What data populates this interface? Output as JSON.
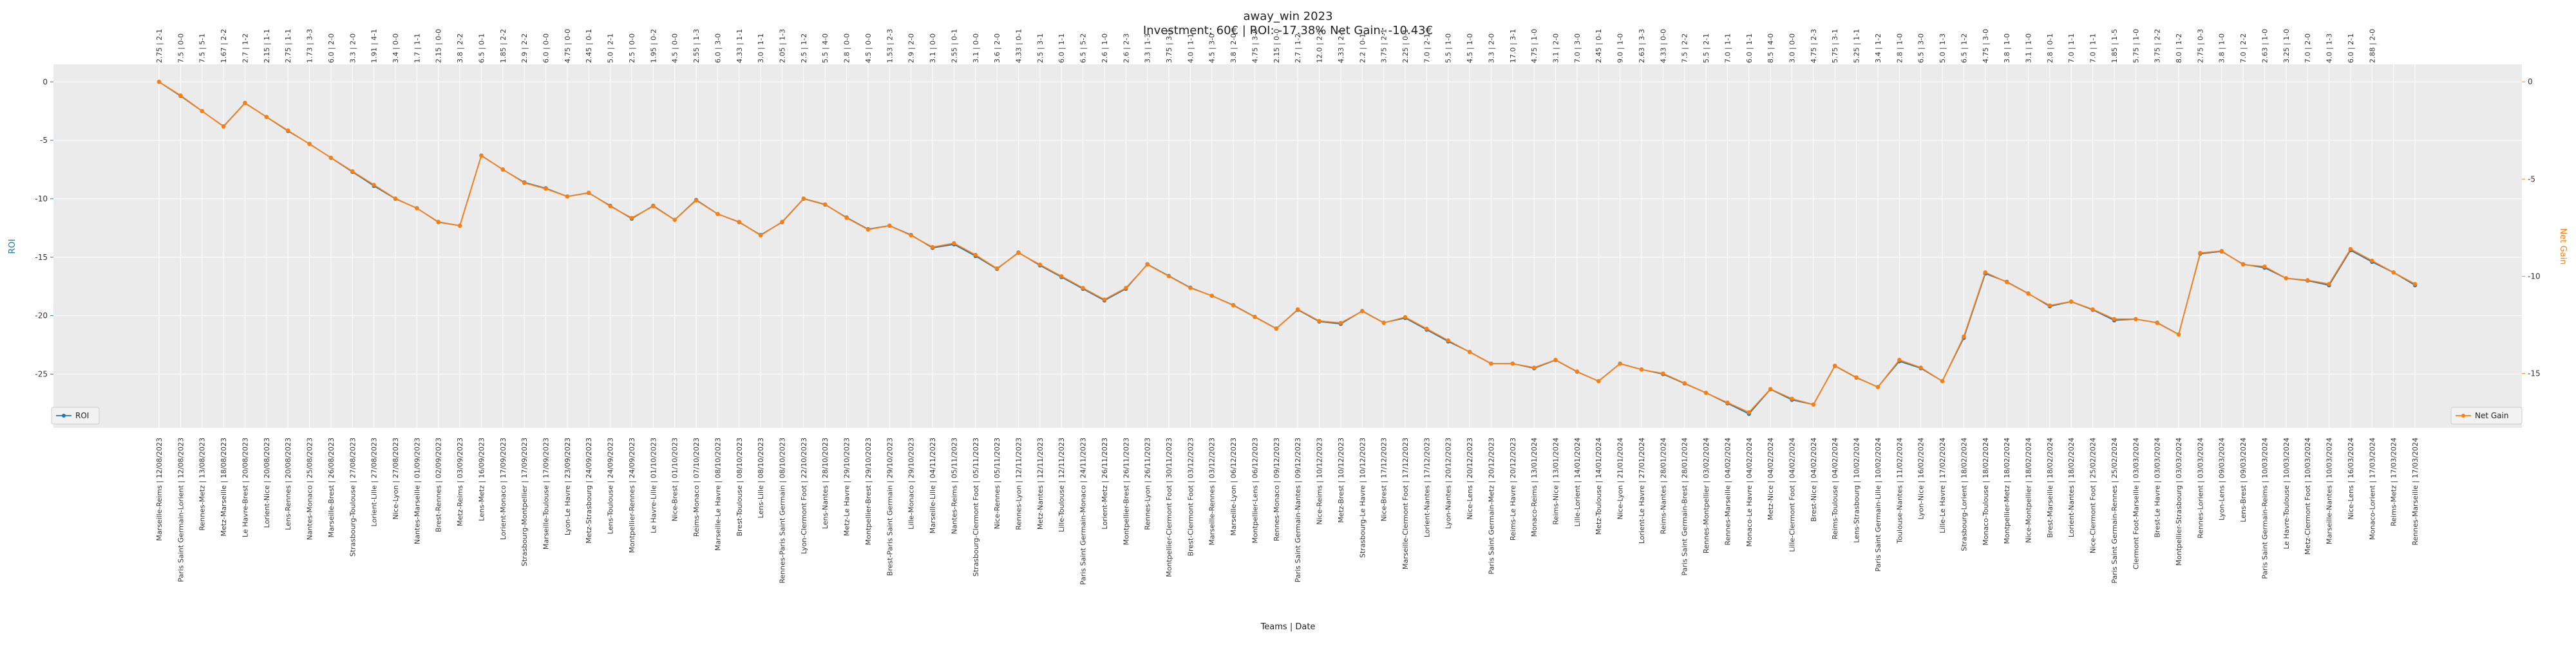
{
  "chart_data": {
    "type": "line",
    "title": "away_win 2023",
    "subtitle": "Investment: 60€ | ROI: -17.38% Net Gain: -10.43€",
    "xlabel": "Teams | Date",
    "ylabel_left": "ROI",
    "ylabel_right": "Net Gain",
    "ylim_left": [
      -29.6,
      1.5
    ],
    "ylim_right": [
      -17.8,
      0.9
    ],
    "yticks_left": [
      0,
      -5,
      -10,
      -15,
      -20,
      -25
    ],
    "yticks_right": [
      0,
      -5,
      -10,
      -15
    ],
    "grid": true,
    "legend_left": {
      "label": "ROI",
      "placement": "bottom-left"
    },
    "legend_right": {
      "label": "Net Gain",
      "placement": "bottom-right"
    },
    "categories": [
      "Marseille-Reims | 12/08/2023",
      "Paris Saint Germain-Lorient | 12/08/2023",
      "Rennes-Metz | 13/08/2023",
      "Metz-Marseille | 18/08/2023",
      "Le Havre-Brest | 20/08/2023",
      "Lorient-Nice | 20/08/2023",
      "Lens-Rennes | 20/08/2023",
      "Nantes-Monaco | 25/08/2023",
      "Marseille-Brest | 26/08/2023",
      "Strasbourg-Toulouse | 27/08/2023",
      "Lorient-Lille | 27/08/2023",
      "Nice-Lyon | 27/08/2023",
      "Nantes-Marseille | 01/09/2023",
      "Brest-Rennes | 02/09/2023",
      "Metz-Reims | 03/09/2023",
      "Lens-Metz | 16/09/2023",
      "Lorient-Monaco | 17/09/2023",
      "Strasbourg-Montpellier | 17/09/2023",
      "Marseille-Toulouse | 17/09/2023",
      "Lyon-Le Havre | 23/09/2023",
      "Metz-Strasbourg | 24/09/2023",
      "Lens-Toulouse | 24/09/2023",
      "Montpellier-Rennes | 24/09/2023",
      "Le Havre-Lille | 01/10/2023",
      "Nice-Brest | 01/10/2023",
      "Reims-Monaco | 07/10/2023",
      "Marseille-Le Havre | 08/10/2023",
      "Brest-Toulouse | 08/10/2023",
      "Lens-Lille | 08/10/2023",
      "Rennes-Paris Saint Germain | 08/10/2023",
      "Lyon-Clermont Foot | 22/10/2023",
      "Lens-Nantes | 28/10/2023",
      "Metz-Le Havre | 29/10/2023",
      "Montpellier-Brest | 29/10/2023",
      "Brest-Paris Saint Germain | 29/10/2023",
      "Lille-Monaco | 29/10/2023",
      "Marseille-Lille | 04/11/2023",
      "Nantes-Reims | 05/11/2023",
      "Strasbourg-Clermont Foot | 05/11/2023",
      "Nice-Rennes | 05/11/2023",
      "Rennes-Lyon | 12/11/2023",
      "Metz-Nantes | 12/11/2023",
      "Lille-Toulouse | 12/11/2023",
      "Paris Saint Germain-Monaco | 24/11/2023",
      "Lorient-Metz | 26/11/2023",
      "Montpellier-Brest | 26/11/2023",
      "Rennes-Lyon | 26/11/2023",
      "Montpellier-Clermont Foot | 30/11/2023",
      "Brest-Clermont Foot | 03/12/2023",
      "Marseille-Rennes | 03/12/2023",
      "Marseille-Lyon | 06/12/2023",
      "Montpellier-Lens | 06/12/2023",
      "Rennes-Monaco | 09/12/2023",
      "Paris Saint Germain-Nantes | 09/12/2023",
      "Nice-Reims | 10/12/2023",
      "Metz-Brest | 10/12/2023",
      "Strasbourg-Le Havre | 10/12/2023",
      "Nice-Brest | 17/12/2023",
      "Marseille-Clermont Foot | 17/12/2023",
      "Lorient-Nantes | 17/12/2023",
      "Lyon-Nantes | 20/12/2023",
      "Nice-Lens | 20/12/2023",
      "Paris Saint Germain-Metz | 20/12/2023",
      "Reims-Le Havre | 20/12/2023",
      "Monaco-Reims | 13/01/2024",
      "Reims-Nice | 13/01/2024",
      "Lille-Lorient | 14/01/2024",
      "Metz-Toulouse | 14/01/2024",
      "Nice-Lyon | 21/01/2024",
      "Lorient-Le Havre | 27/01/2024",
      "Reims-Nantes | 28/01/2024",
      "Paris Saint Germain-Brest | 28/01/2024",
      "Rennes-Montpellier | 03/02/2024",
      "Rennes-Marseille | 04/02/2024",
      "Monaco-Le Havre | 04/02/2024",
      "Metz-Nice | 04/02/2024",
      "Lille-Clermont Foot | 04/02/2024",
      "Brest-Nice | 04/02/2024",
      "Reims-Toulouse | 04/02/2024",
      "Lens-Strasbourg | 10/02/2024",
      "Paris Saint Germain-Lille | 10/02/2024",
      "Toulouse-Nantes | 11/02/2024",
      "Lyon-Nice | 16/02/2024",
      "Lille-Le Havre | 17/02/2024",
      "Strasbourg-Lorient | 18/02/2024",
      "Monaco-Toulouse | 18/02/2024",
      "Montpellier-Metz | 18/02/2024",
      "Nice-Montpellier | 18/02/2024",
      "Brest-Marseille | 18/02/2024",
      "Lorient-Nantes | 18/02/2024",
      "Nice-Clermont Foot | 25/02/2024",
      "Paris Saint Germain-Rennes | 25/02/2024",
      "Clermont Foot-Marseille | 03/03/2024",
      "Brest-Le Havre | 03/03/2024",
      "Montpellier-Strasbourg | 03/03/2024",
      "Rennes-Lorient | 03/03/2024",
      "Lyon-Lens | 09/03/2024",
      "Lens-Brest | 09/03/2024",
      "Paris Saint Germain-Reims | 10/03/2024",
      "Le Havre-Toulouse | 10/03/2024",
      "Metz-Clermont Foot | 10/03/2024",
      "Marseille-Nantes | 10/03/2024",
      "Nice-Lens | 16/03/2024",
      "Monaco-Lorient | 17/03/2024",
      "Reims-Metz | 17/03/2024",
      "Rennes-Marseille | 17/03/2024"
    ],
    "top_labels": [
      "2.75 | 2-1",
      "7.5 | 0-0",
      "7.5 | 5-1",
      "1.67 | 2-2",
      "2.7 | 1-2",
      "2.15 | 1-1",
      "2.75 | 1-1",
      "1.73 | 3-3",
      "6.0 | 2-0",
      "3.3 | 2-0",
      "1.91 | 4-1",
      "3.4 | 0-0",
      "1.7 | 1-1",
      "2.15 | 0-0",
      "3.8 | 2-2",
      "6.5 | 0-1",
      "1.85 | 2-2",
      "2.9 | 2-2",
      "6.0 | 0-0",
      "4.75 | 0-0",
      "2.45 | 0-1",
      "5.0 | 2-1",
      "2.5 | 0-0",
      "1.95 | 0-2",
      "4.5 | 0-0",
      "2.55 | 1-3",
      "6.0 | 3-0",
      "4.33 | 1-1",
      "3.0 | 1-1",
      "2.05 | 1-3",
      "2.5 | 1-2",
      "5.5 | 4-0",
      "2.8 | 0-0",
      "4.5 | 0-0",
      "1.53 | 2-3",
      "2.9 | 2-0",
      "3.1 | 0-0",
      "2.55 | 0-1",
      "3.1 | 0-0",
      "3.6 | 2-0",
      "4.33 | 0-1",
      "2.5 | 3-1",
      "6.0 | 1-1",
      "6.5 | 5-2",
      "2.6 | 1-0",
      "2.6 | 2-3",
      "3.3 | 1-3",
      "3.75 | 3-1",
      "4.0 | 1-1",
      "4.5 | 3-0",
      "3.8 | 2-0",
      "4.75 | 3-0",
      "2.15 | 0-0",
      "2.7 | 1-2",
      "12.0 | 2-1",
      "4.33 | 2-1",
      "2.2 | 0-1",
      "3.75 | 2-1",
      "2.25 | 0-1",
      "7.0 | 2-1",
      "5.5 | 1-0",
      "4.5 | 1-0",
      "3.3 | 2-0",
      "17.0 | 3-1",
      "4.75 | 1-0",
      "3.1 | 2-0",
      "7.0 | 3-0",
      "2.45 | 0-1",
      "9.0 | 1-0",
      "2.63 | 3-3",
      "4.33 | 0-0",
      "7.5 | 2-2",
      "5.5 | 2-1",
      "7.0 | 1-1",
      "6.0 | 1-1",
      "8.5 | 4-0",
      "3.0 | 0-0",
      "4.75 | 2-3",
      "5.75 | 3-1",
      "5.25 | 1-1",
      "3.4 | 1-2",
      "2.8 | 1-0",
      "6.5 | 3-0",
      "5.0 | 1-3",
      "6.5 | 1-2",
      "4.75 | 3-0",
      "3.8 | 1-0",
      "3.1 | 1-0",
      "2.8 | 0-1",
      "7.0 | 1-1",
      "7.0 | 1-1",
      "1.85 | 1-5",
      "5.75 | 1-0",
      "3.75 | 2-2",
      "8.0 | 1-2",
      "2.75 | 0-3",
      "3.8 | 1-0",
      "7.0 | 2-2",
      "2.63 | 1-0",
      "3.25 | 1-0",
      "7.0 | 2-0",
      "4.0 | 1-3",
      "6.0 | 2-1",
      "2.88 | 2-0"
    ],
    "series": [
      {
        "name": "ROI",
        "color": "#1f77b4",
        "values": [
          0,
          -1.2,
          -2.5,
          -3.8,
          -1.8,
          -3.0,
          -4.2,
          -5.3,
          -6.5,
          -7.7,
          -8.9,
          -10.0,
          -10.8,
          -12.0,
          -12.3,
          -6.3,
          -7.5,
          -8.6,
          -9.1,
          -9.8,
          -9.5,
          -10.6,
          -11.7,
          -10.6,
          -11.8,
          -10.1,
          -11.3,
          -12.0,
          -13.1,
          -12.0,
          -10.0,
          -10.5,
          -11.6,
          -12.6,
          -12.3,
          -13.1,
          -14.2,
          -13.9,
          -14.9,
          -16.0,
          -14.6,
          -15.7,
          -16.7,
          -17.7,
          -18.7,
          -17.7,
          -15.6,
          -16.6,
          -17.6,
          -18.3,
          -19.1,
          -20.1,
          -21.1,
          -19.5,
          -20.5,
          -20.7,
          -19.6,
          -20.6,
          -20.2,
          -21.2,
          -22.2,
          -23.1,
          -24.1,
          -24.1,
          -24.5,
          -23.8,
          -24.8,
          -25.6,
          -24.1,
          -24.6,
          -25.0,
          -25.8,
          -26.6,
          -27.5,
          -28.4,
          -26.3,
          -27.2,
          -27.6,
          -24.3,
          -25.3,
          -26.1,
          -23.9,
          -24.5,
          -25.6,
          -21.9,
          -16.4,
          -17.1,
          -18.1,
          -19.2,
          -18.8,
          -19.5,
          -20.4,
          -20.3,
          -20.6,
          -21.6,
          -14.7,
          -14.5,
          -15.6,
          -15.9,
          -16.8,
          -17.0,
          -17.4,
          -14.4,
          -15.4,
          -16.3,
          -17.4
        ]
      },
      {
        "name": "Net Gain",
        "color": "#ff7f0e",
        "values": [
          0,
          -0.7,
          -1.5,
          -2.3,
          -1.1,
          -1.8,
          -2.5,
          -3.2,
          -3.9,
          -4.6,
          -5.3,
          -6.0,
          -6.5,
          -7.2,
          -7.4,
          -3.8,
          -4.5,
          -5.2,
          -5.5,
          -5.9,
          -5.7,
          -6.4,
          -7.0,
          -6.4,
          -7.1,
          -6.1,
          -6.8,
          -7.2,
          -7.9,
          -7.2,
          -6.0,
          -6.3,
          -7.0,
          -7.6,
          -7.4,
          -7.9,
          -8.5,
          -8.3,
          -8.9,
          -9.6,
          -8.8,
          -9.4,
          -10.0,
          -10.6,
          -11.2,
          -10.6,
          -9.4,
          -10.0,
          -10.6,
          -11.0,
          -11.5,
          -12.1,
          -12.7,
          -11.7,
          -12.3,
          -12.4,
          -11.8,
          -12.4,
          -12.1,
          -12.7,
          -13.3,
          -13.9,
          -14.5,
          -14.5,
          -14.7,
          -14.3,
          -14.9,
          -15.4,
          -14.5,
          -14.8,
          -15.0,
          -15.5,
          -16.0,
          -16.5,
          -17.0,
          -15.8,
          -16.3,
          -16.6,
          -14.6,
          -15.2,
          -15.7,
          -14.3,
          -14.7,
          -15.4,
          -13.1,
          -9.8,
          -10.3,
          -10.9,
          -11.5,
          -11.3,
          -11.7,
          -12.2,
          -12.2,
          -12.4,
          -13.0,
          -8.8,
          -8.7,
          -9.4,
          -9.5,
          -10.1,
          -10.2,
          -10.4,
          -8.6,
          -9.2,
          -9.8,
          -10.4
        ]
      }
    ]
  }
}
